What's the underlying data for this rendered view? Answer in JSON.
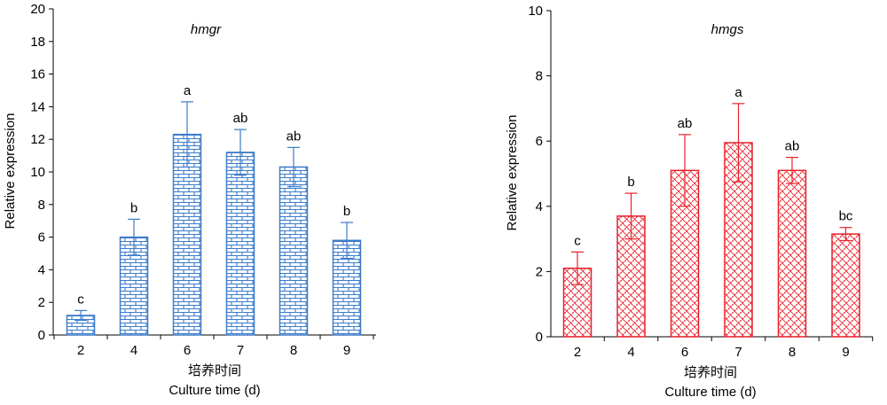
{
  "chart_data": [
    {
      "type": "bar",
      "title": "hmgr",
      "xlabel_cn": "培养时间",
      "xlabel": "Culture time (d)",
      "ylabel": "Relative expression",
      "categories": [
        "2",
        "4",
        "6",
        "7",
        "8",
        "9"
      ],
      "values": [
        1.2,
        6.0,
        12.3,
        11.2,
        10.3,
        5.8
      ],
      "errors": [
        0.3,
        1.1,
        2.0,
        1.4,
        1.2,
        1.1
      ],
      "sig_labels": [
        "c",
        "b",
        "a",
        "ab",
        "ab",
        "b"
      ],
      "ylim": [
        0,
        20
      ],
      "yticks": [
        0,
        2,
        4,
        6,
        8,
        10,
        12,
        14,
        16,
        18,
        20
      ],
      "color": "#3d7cc9",
      "pattern": "brick"
    },
    {
      "type": "bar",
      "title": "hmgs",
      "xlabel_cn": "培养时间",
      "xlabel": "Culture time (d)",
      "ylabel": "Relative expression",
      "categories": [
        "2",
        "4",
        "6",
        "7",
        "8",
        "9"
      ],
      "values": [
        2.1,
        3.7,
        5.1,
        5.95,
        5.1,
        3.15
      ],
      "errors": [
        0.5,
        0.7,
        1.1,
        1.2,
        0.4,
        0.2
      ],
      "sig_labels": [
        "c",
        "b",
        "ab",
        "a",
        "ab",
        "bc"
      ],
      "ylim": [
        0,
        10
      ],
      "yticks": [
        0,
        2,
        4,
        6,
        8,
        10
      ],
      "color": "#e8202a",
      "pattern": "diagonal-cross"
    }
  ]
}
